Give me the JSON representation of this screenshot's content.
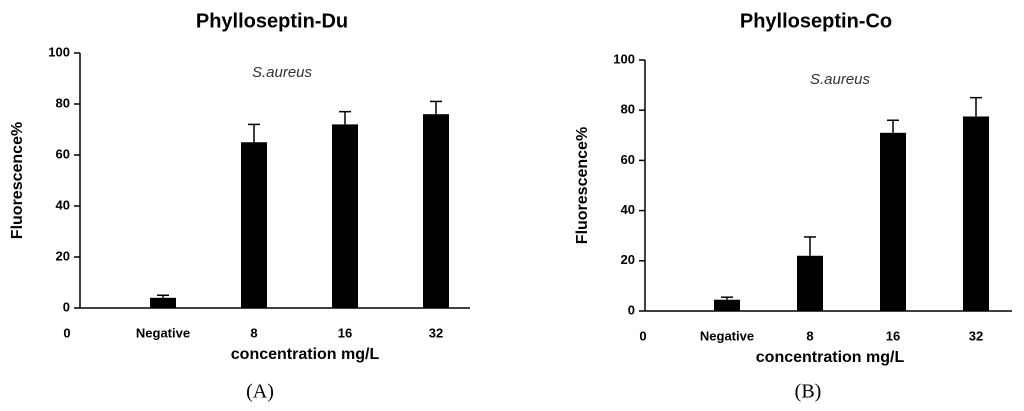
{
  "chart_data": [
    {
      "type": "bar",
      "title": "Phylloseptin-Du",
      "annotation": "S.aureus",
      "ylabel": "Fluorescence%",
      "xlabel": "concentration mg/L",
      "x_origin_label": "0",
      "panel_label": "(A)",
      "categories": [
        "Negative",
        "8",
        "16",
        "32"
      ],
      "values": [
        4,
        65,
        72,
        76
      ],
      "errors": [
        1,
        7,
        5,
        5
      ],
      "color": "#000000",
      "ylim": [
        0,
        100
      ],
      "yticks": [
        0,
        20,
        40,
        60,
        80,
        100
      ]
    },
    {
      "type": "bar",
      "title": "Phylloseptin-Co",
      "annotation": "S.aureus",
      "ylabel": "Fluorescence%",
      "xlabel": "concentration mg/L",
      "x_origin_label": "0",
      "panel_label": "(B)",
      "categories": [
        "Negative",
        "8",
        "16",
        "32"
      ],
      "values": [
        4.5,
        22,
        71,
        77.5
      ],
      "errors": [
        1,
        7.5,
        5,
        7.5
      ],
      "color": "#000000",
      "ylim": [
        0,
        100
      ],
      "yticks": [
        0,
        20,
        40,
        60,
        80,
        100
      ]
    }
  ]
}
